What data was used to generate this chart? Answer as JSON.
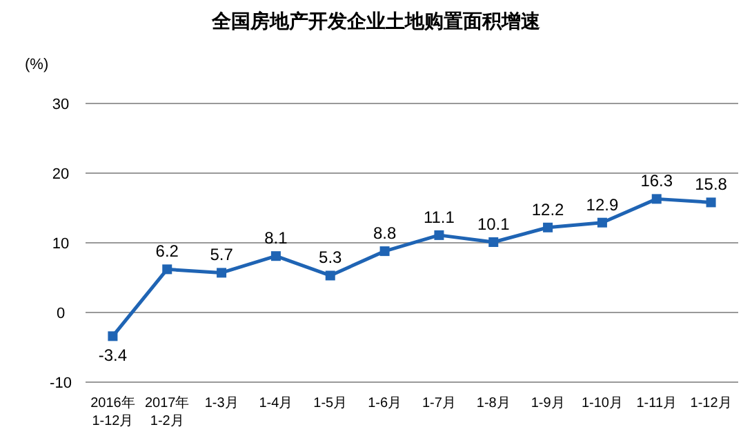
{
  "chart_data": {
    "type": "line",
    "title": "全国房地产开发企业土地购置面积增速",
    "ylabel": "(%)",
    "categories": [
      "2016年\n1-12月",
      "2017年\n1-2月",
      "1-3月",
      "1-4月",
      "1-5月",
      "1-6月",
      "1-7月",
      "1-8月",
      "1-9月",
      "1-10月",
      "1-11月",
      "1-12月"
    ],
    "series": [
      {
        "color": "#1f64b4",
        "values": [
          -3.4,
          6.2,
          5.7,
          8.1,
          5.3,
          8.8,
          11.1,
          10.1,
          12.2,
          12.9,
          16.3,
          15.8
        ]
      }
    ],
    "ylim": [
      -10,
      30
    ],
    "yticks": [
      -10,
      0,
      10,
      20,
      30
    ],
    "grid": "y",
    "marker": "square",
    "line_style": "solid",
    "data_labels": true
  }
}
